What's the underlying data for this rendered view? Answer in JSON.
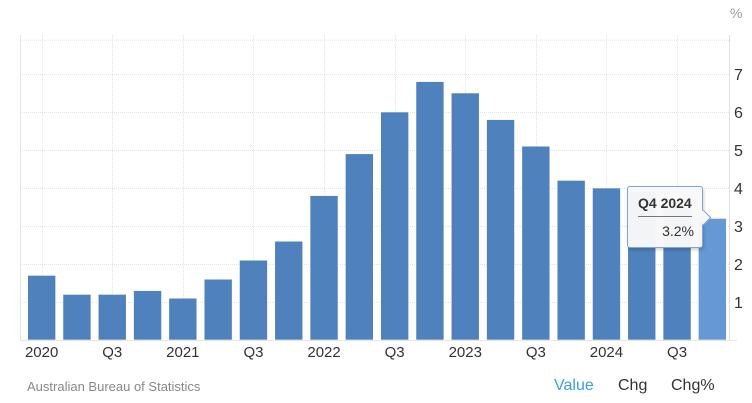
{
  "chart": {
    "unit_label": "%",
    "source": "Australian Bureau of Statistics",
    "tooltip": {
      "title": "Q4 2024",
      "value": "3.2%"
    },
    "colors": {
      "bar": "#4f81bd",
      "bar_highlight": "#6699d4",
      "grid": "#e4e4e4",
      "axis_text": "#333333",
      "active_tab": "#3d9bf0"
    }
  },
  "tabs": [
    {
      "label": "Value",
      "active": true
    },
    {
      "label": "Chg",
      "active": false
    },
    {
      "label": "Chg%",
      "active": false
    }
  ],
  "chart_data": {
    "type": "bar",
    "title": "",
    "xlabel": "",
    "ylabel": "%",
    "ylim": [
      0,
      7.9
    ],
    "yticks": [
      1,
      2,
      3,
      4,
      5,
      6,
      7
    ],
    "grid": true,
    "legend": null,
    "categories": [
      "2020 Q1",
      "2020 Q2",
      "2020 Q3",
      "2020 Q4",
      "2021 Q1",
      "2021 Q2",
      "2021 Q3",
      "2021 Q4",
      "2022 Q1",
      "2022 Q2",
      "2022 Q3",
      "2022 Q4",
      "2023 Q1",
      "2023 Q2",
      "2023 Q3",
      "2023 Q4",
      "2024 Q1",
      "2024 Q2",
      "2024 Q3",
      "2024 Q4"
    ],
    "x_tick_labels": [
      {
        "index": 0,
        "label": "2020"
      },
      {
        "index": 2,
        "label": "Q3"
      },
      {
        "index": 4,
        "label": "2021"
      },
      {
        "index": 6,
        "label": "Q3"
      },
      {
        "index": 8,
        "label": "2022"
      },
      {
        "index": 10,
        "label": "Q3"
      },
      {
        "index": 12,
        "label": "2023"
      },
      {
        "index": 14,
        "label": "Q3"
      },
      {
        "index": 16,
        "label": "2024"
      },
      {
        "index": 18,
        "label": "Q3"
      }
    ],
    "values": [
      1.7,
      1.2,
      1.2,
      1.3,
      1.1,
      1.6,
      2.1,
      2.6,
      3.8,
      4.9,
      6.0,
      6.8,
      6.5,
      5.8,
      5.1,
      4.2,
      4.0,
      3.9,
      3.5,
      3.2
    ],
    "highlighted_index": 19
  }
}
